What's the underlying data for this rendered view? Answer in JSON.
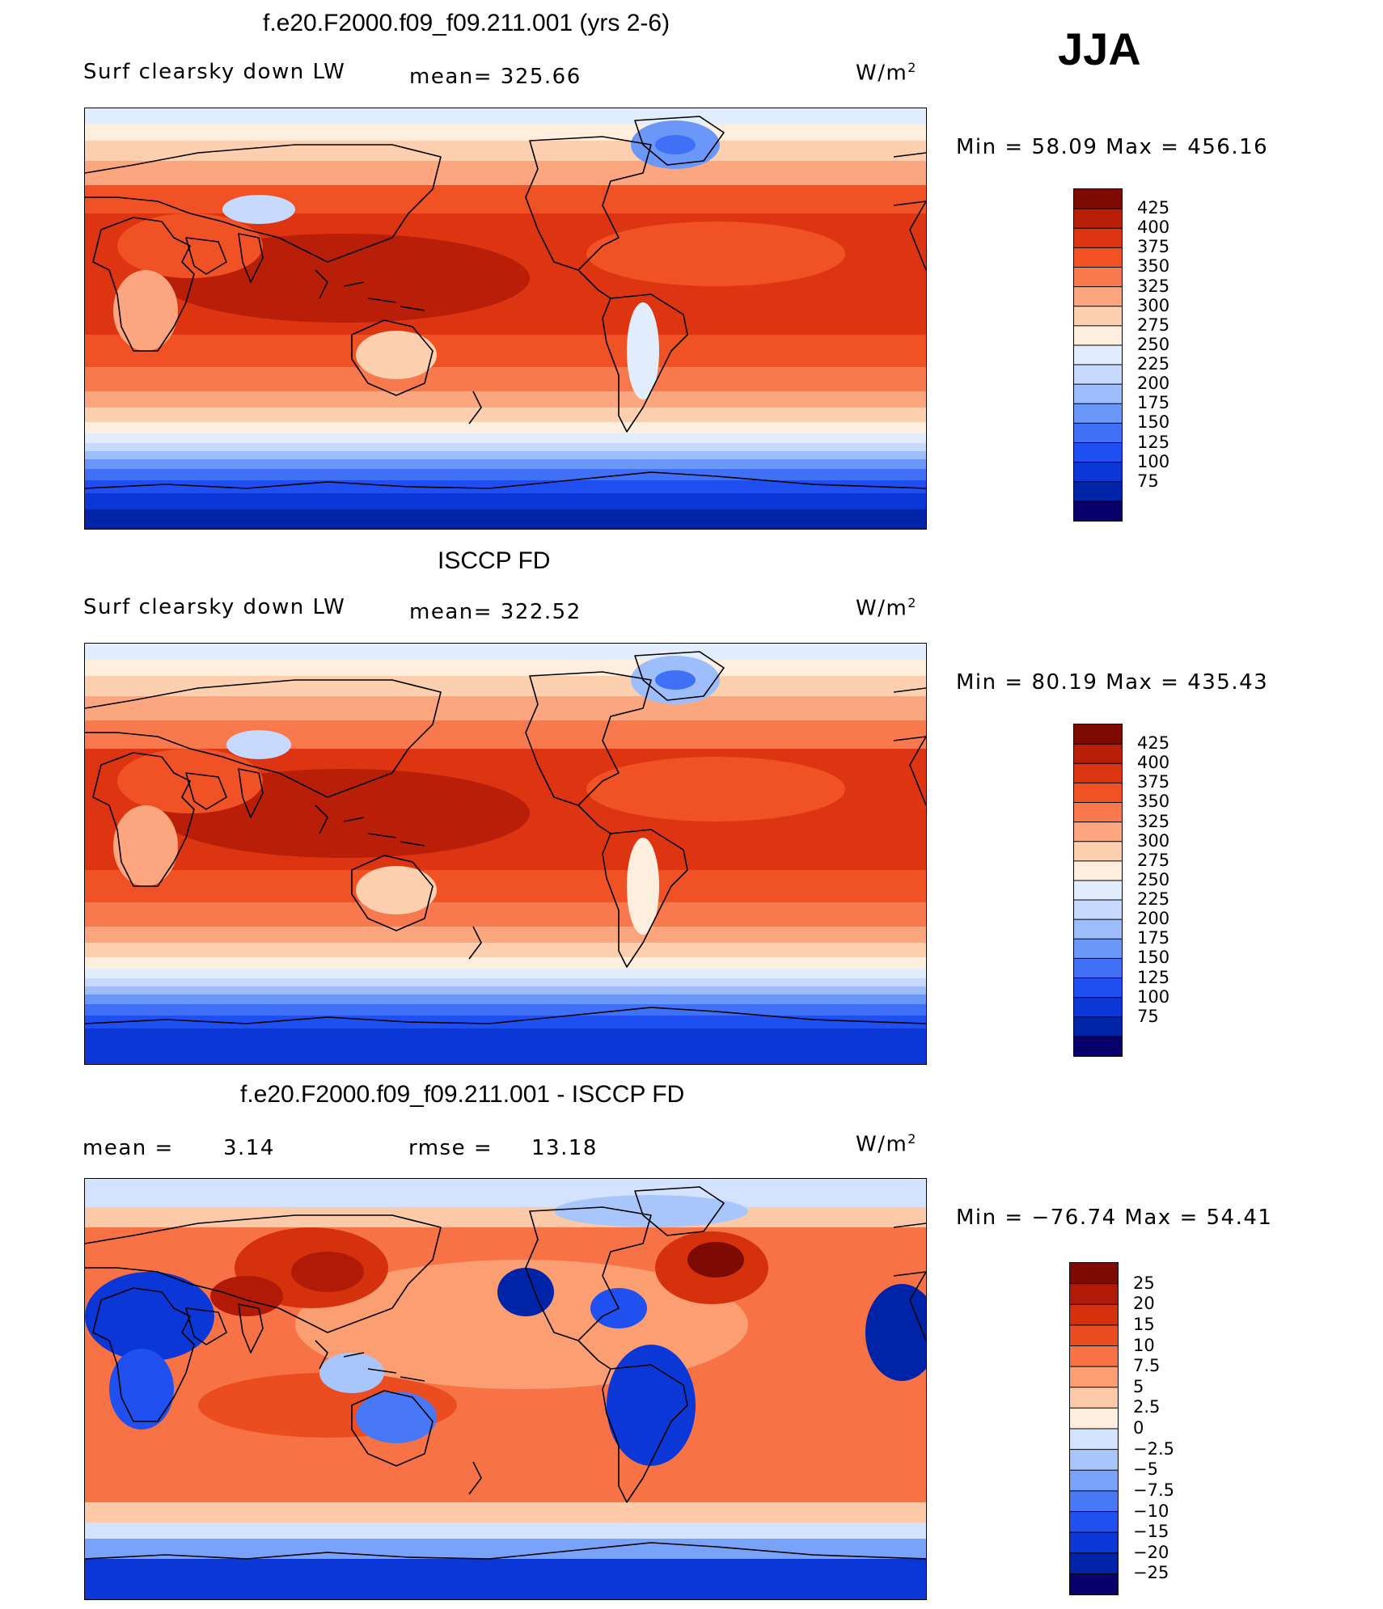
{
  "season": "JJA",
  "colors": {
    "abs_scale": [
      "#08006b",
      "#0024a8",
      "#0a37d6",
      "#1f4ff0",
      "#3f70f5",
      "#6b98f8",
      "#9dbdfb",
      "#c7dafd",
      "#e2eefe",
      "#fdeedd",
      "#fccfae",
      "#fba67f",
      "#f8794e",
      "#f05226",
      "#dd3511",
      "#b81e08",
      "#7e0b03"
    ],
    "diff_scale": [
      "#08006b",
      "#0024a8",
      "#0a37d6",
      "#2050ef",
      "#4878f5",
      "#79a3f9",
      "#a9c6fc",
      "#d3e3fe",
      "#fdeedd",
      "#fccaa8",
      "#fb9e72",
      "#f77346",
      "#ec4d20",
      "#d6310d",
      "#b01a06",
      "#7e0b03"
    ],
    "land_outline": "#000000"
  },
  "panels": [
    {
      "title": "f.e20.F2000.f09_f09.211.001 (yrs 2-6)",
      "variable": "Surf clearsky down LW",
      "mean_text": "mean=  325.66",
      "units": "W/m",
      "units_sup": "2",
      "min_text": "Min  =   58.09  Max  =  456.16",
      "colorbar_labels": [
        "425",
        "400",
        "375",
        "350",
        "325",
        "300",
        "275",
        "250",
        "225",
        "200",
        "175",
        "150",
        "125",
        "100",
        "75"
      ]
    },
    {
      "title": "ISCCP FD",
      "variable": "Surf clearsky down LW",
      "mean_text": "mean=  322.52",
      "units": "W/m",
      "units_sup": "2",
      "min_text": "Min  =   80.19  Max  =  435.43",
      "colorbar_labels": [
        "425",
        "400",
        "375",
        "350",
        "325",
        "300",
        "275",
        "250",
        "225",
        "200",
        "175",
        "150",
        "125",
        "100",
        "75"
      ]
    },
    {
      "title": "f.e20.F2000.f09_f09.211.001 - ISCCP FD",
      "mean_label": "mean  =",
      "mean_value": "3.14",
      "rmse_label": "rmse  =",
      "rmse_value": "13.18",
      "units": "W/m",
      "units_sup": "2",
      "min_text": "Min  = −76.74  Max  =   54.41",
      "colorbar_labels": [
        "25",
        "20",
        "15",
        "10",
        "7.5",
        "5",
        "2.5",
        "0",
        "−2.5",
        "−5",
        "−7.5",
        "−10",
        "−15",
        "−20",
        "−25"
      ]
    }
  ]
}
